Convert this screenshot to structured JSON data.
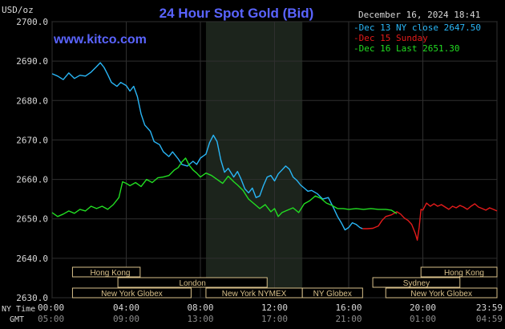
{
  "header": {
    "unit": "USD/oz",
    "title": "24 Hour Spot Gold (Bid)",
    "date": "December 16, 2024 18:41",
    "watermark": "www.kitco.com"
  },
  "footer": {
    "ny_label": "NY Time",
    "gmt_label": "GMT"
  },
  "colors": {
    "background": "#000000",
    "plot_bg": "#000000",
    "ny_hours_bg": "#1c241c",
    "grid": "#2f2f2f",
    "title": "#5a64ff",
    "text": "#d8d8d8",
    "session_box": "#d8c08a",
    "prev_close": "#29b6f6",
    "sunday": "#e31b1b",
    "last": "#22dd22"
  },
  "chart_data": {
    "type": "line",
    "title": "24 Hour Spot Gold (Bid)",
    "ylabel": "USD/oz",
    "ylim": [
      2630,
      2700
    ],
    "y_ticks": [
      "2700.0",
      "2690.0",
      "2680.0",
      "2670.0",
      "2660.0",
      "2650.0",
      "2640.0",
      "2630.0"
    ],
    "x_range": [
      0,
      24
    ],
    "x_ticks_ny": [
      "00:00",
      "04:00",
      "08:00",
      "12:00",
      "16:00",
      "20:00",
      "23:59"
    ],
    "x_ticks_gmt": [
      "05:00",
      "09:00",
      "13:00",
      "17:00",
      "21:00",
      "01:00",
      "04:59"
    ],
    "shaded_hours": [
      8.3,
      13.5
    ],
    "legend": [
      {
        "text": "Dec 13 NY close 2647.50",
        "color_key": "prev_close"
      },
      {
        "text": "Dec 15 Sunday",
        "color_key": "sunday"
      },
      {
        "text": "Dec 16 Last 2651.30",
        "color_key": "last"
      }
    ],
    "sessions": [
      {
        "name": "Hong Kong",
        "row": 0,
        "start": 1.1,
        "end": 4.75,
        "align": "left"
      },
      {
        "name": "Hong Kong",
        "row": 0,
        "start": 19.9,
        "end": 24,
        "align": "right"
      },
      {
        "name": "London",
        "row": 1,
        "start": 3.55,
        "end": 11.6,
        "align": "center"
      },
      {
        "name": "Sydney",
        "row": 1,
        "start": 17.3,
        "end": 22.0,
        "align": "center"
      },
      {
        "name": "New York Globex",
        "row": 2,
        "start": 1.1,
        "end": 7.5,
        "align": "center"
      },
      {
        "name": "New York NYMEX",
        "row": 2,
        "start": 8.3,
        "end": 13.5,
        "align": "center"
      },
      {
        "name": "NY Globex",
        "row": 2,
        "start": 13.5,
        "end": 16.75,
        "align": "center"
      },
      {
        "name": "New York Globex",
        "row": 2,
        "start": 18.0,
        "end": 24,
        "align": "center"
      }
    ],
    "series": [
      {
        "name": "Dec 13 NY close 2647.50",
        "color_key": "prev_close",
        "points": [
          [
            0,
            2686.8
          ],
          [
            0.3,
            2686.2
          ],
          [
            0.6,
            2685.3
          ],
          [
            0.9,
            2687.0
          ],
          [
            1.2,
            2685.6
          ],
          [
            1.5,
            2686.4
          ],
          [
            1.8,
            2686.2
          ],
          [
            2.1,
            2687.2
          ],
          [
            2.4,
            2688.6
          ],
          [
            2.6,
            2689.6
          ],
          [
            2.8,
            2688.4
          ],
          [
            3.0,
            2686.6
          ],
          [
            3.2,
            2684.6
          ],
          [
            3.5,
            2683.6
          ],
          [
            3.7,
            2684.6
          ],
          [
            4.0,
            2683.8
          ],
          [
            4.2,
            2682.4
          ],
          [
            4.4,
            2683.6
          ],
          [
            4.6,
            2681.0
          ],
          [
            4.8,
            2676.6
          ],
          [
            5.0,
            2673.8
          ],
          [
            5.3,
            2672.2
          ],
          [
            5.5,
            2669.6
          ],
          [
            5.8,
            2668.8
          ],
          [
            6.0,
            2667.0
          ],
          [
            6.3,
            2665.8
          ],
          [
            6.5,
            2667.0
          ],
          [
            6.8,
            2665.2
          ],
          [
            7.0,
            2663.8
          ],
          [
            7.3,
            2663.4
          ],
          [
            7.6,
            2664.6
          ],
          [
            7.8,
            2663.8
          ],
          [
            8.0,
            2665.4
          ],
          [
            8.3,
            2666.4
          ],
          [
            8.5,
            2669.4
          ],
          [
            8.7,
            2671.2
          ],
          [
            8.9,
            2669.6
          ],
          [
            9.1,
            2665.0
          ],
          [
            9.3,
            2661.8
          ],
          [
            9.5,
            2662.8
          ],
          [
            9.8,
            2660.6
          ],
          [
            10.0,
            2662.0
          ],
          [
            10.2,
            2660.0
          ],
          [
            10.4,
            2657.6
          ],
          [
            10.6,
            2656.6
          ],
          [
            10.8,
            2657.8
          ],
          [
            11.0,
            2655.4
          ],
          [
            11.2,
            2655.8
          ],
          [
            11.4,
            2658.4
          ],
          [
            11.6,
            2660.6
          ],
          [
            11.8,
            2661.0
          ],
          [
            12.0,
            2659.6
          ],
          [
            12.2,
            2661.4
          ],
          [
            12.4,
            2662.4
          ],
          [
            12.6,
            2663.4
          ],
          [
            12.8,
            2662.6
          ],
          [
            13.0,
            2660.6
          ],
          [
            13.2,
            2659.8
          ],
          [
            13.4,
            2658.6
          ],
          [
            13.6,
            2657.8
          ],
          [
            13.8,
            2657.0
          ],
          [
            14.0,
            2657.2
          ],
          [
            14.3,
            2656.4
          ],
          [
            14.6,
            2655.0
          ],
          [
            14.9,
            2655.4
          ],
          [
            15.2,
            2652.6
          ],
          [
            15.4,
            2650.6
          ],
          [
            15.6,
            2649.0
          ],
          [
            15.8,
            2647.2
          ],
          [
            16.0,
            2647.8
          ],
          [
            16.2,
            2649.0
          ],
          [
            16.4,
            2648.6
          ],
          [
            16.6,
            2647.8
          ],
          [
            16.75,
            2647.5
          ]
        ]
      },
      {
        "name": "Dec 15 Sunday",
        "color_key": "sunday",
        "points": [
          [
            16.75,
            2647.5
          ],
          [
            17.0,
            2647.5
          ],
          [
            17.3,
            2647.6
          ],
          [
            17.6,
            2648.2
          ],
          [
            17.8,
            2649.6
          ],
          [
            18.0,
            2650.6
          ],
          [
            18.3,
            2651.0
          ],
          [
            18.6,
            2651.8
          ],
          [
            18.8,
            2651.2
          ],
          [
            19.0,
            2650.2
          ],
          [
            19.2,
            2649.6
          ],
          [
            19.4,
            2648.6
          ],
          [
            19.6,
            2646.2
          ],
          [
            19.7,
            2644.6
          ],
          [
            19.8,
            2647.8
          ],
          [
            19.9,
            2652.4
          ],
          [
            20.0,
            2652.2
          ],
          [
            20.2,
            2654.0
          ],
          [
            20.4,
            2653.2
          ],
          [
            20.6,
            2653.8
          ],
          [
            20.8,
            2653.2
          ],
          [
            21.0,
            2653.6
          ],
          [
            21.2,
            2653.0
          ],
          [
            21.4,
            2652.4
          ],
          [
            21.6,
            2653.2
          ],
          [
            21.8,
            2652.8
          ],
          [
            22.0,
            2653.4
          ],
          [
            22.2,
            2653.0
          ],
          [
            22.4,
            2652.4
          ],
          [
            22.6,
            2653.2
          ],
          [
            22.8,
            2653.8
          ],
          [
            23.0,
            2653.0
          ],
          [
            23.2,
            2652.6
          ],
          [
            23.4,
            2652.2
          ],
          [
            23.6,
            2652.8
          ],
          [
            23.8,
            2652.4
          ],
          [
            24.0,
            2652.0
          ]
        ]
      },
      {
        "name": "Dec 16 Last 2651.30",
        "color_key": "last",
        "points": [
          [
            0,
            2651.6
          ],
          [
            0.3,
            2650.6
          ],
          [
            0.6,
            2651.2
          ],
          [
            0.9,
            2652.0
          ],
          [
            1.2,
            2651.4
          ],
          [
            1.5,
            2652.4
          ],
          [
            1.8,
            2652.0
          ],
          [
            2.1,
            2653.2
          ],
          [
            2.4,
            2652.6
          ],
          [
            2.7,
            2653.2
          ],
          [
            3.0,
            2652.4
          ],
          [
            3.3,
            2653.6
          ],
          [
            3.6,
            2655.4
          ],
          [
            3.8,
            2659.4
          ],
          [
            4.0,
            2659.0
          ],
          [
            4.2,
            2658.4
          ],
          [
            4.5,
            2659.2
          ],
          [
            4.8,
            2658.2
          ],
          [
            5.1,
            2660.0
          ],
          [
            5.4,
            2659.2
          ],
          [
            5.7,
            2660.4
          ],
          [
            6.0,
            2660.6
          ],
          [
            6.3,
            2661.0
          ],
          [
            6.6,
            2662.4
          ],
          [
            6.8,
            2663.0
          ],
          [
            7.0,
            2664.4
          ],
          [
            7.2,
            2665.4
          ],
          [
            7.4,
            2663.6
          ],
          [
            7.6,
            2662.4
          ],
          [
            7.8,
            2661.6
          ],
          [
            8.0,
            2660.6
          ],
          [
            8.3,
            2661.6
          ],
          [
            8.6,
            2661.0
          ],
          [
            8.9,
            2660.0
          ],
          [
            9.2,
            2659.0
          ],
          [
            9.5,
            2660.8
          ],
          [
            9.8,
            2659.4
          ],
          [
            10.0,
            2658.6
          ],
          [
            10.3,
            2657.2
          ],
          [
            10.6,
            2655.0
          ],
          [
            10.9,
            2653.8
          ],
          [
            11.2,
            2652.6
          ],
          [
            11.5,
            2653.6
          ],
          [
            11.8,
            2651.8
          ],
          [
            12.0,
            2652.6
          ],
          [
            12.2,
            2650.6
          ],
          [
            12.4,
            2651.6
          ],
          [
            12.7,
            2652.2
          ],
          [
            13.0,
            2652.8
          ],
          [
            13.3,
            2651.6
          ],
          [
            13.6,
            2653.8
          ],
          [
            13.9,
            2654.6
          ],
          [
            14.2,
            2655.8
          ],
          [
            14.5,
            2655.2
          ],
          [
            14.8,
            2654.0
          ],
          [
            15.1,
            2653.4
          ],
          [
            15.4,
            2652.6
          ],
          [
            15.7,
            2652.6
          ],
          [
            16.0,
            2652.4
          ],
          [
            16.4,
            2652.6
          ],
          [
            16.8,
            2652.4
          ],
          [
            17.2,
            2652.6
          ],
          [
            17.6,
            2652.4
          ],
          [
            18.0,
            2652.4
          ],
          [
            18.3,
            2652.2
          ],
          [
            18.6,
            2651.3
          ]
        ]
      }
    ]
  }
}
